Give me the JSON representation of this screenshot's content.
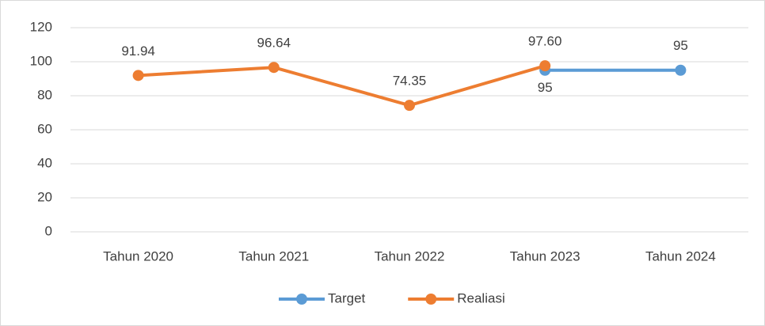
{
  "chart_data": {
    "type": "line",
    "categories": [
      "Tahun 2020",
      "Tahun 2021",
      "Tahun 2022",
      "Tahun 2023",
      "Tahun 2024"
    ],
    "series": [
      {
        "name": "Target",
        "color": "#5b9bd5",
        "values": [
          null,
          null,
          null,
          95,
          95
        ]
      },
      {
        "name": "Realiasi",
        "color": "#ed7d31",
        "values": [
          91.94,
          96.64,
          74.35,
          97.6,
          null
        ],
        "value_labels": [
          "91.94",
          "96.64",
          "74.35",
          "97.60",
          null
        ]
      }
    ],
    "ylim": [
      0,
      120
    ],
    "yticks": [
      0,
      20,
      40,
      60,
      80,
      100,
      120
    ],
    "grid": true,
    "legend": "bottom"
  }
}
